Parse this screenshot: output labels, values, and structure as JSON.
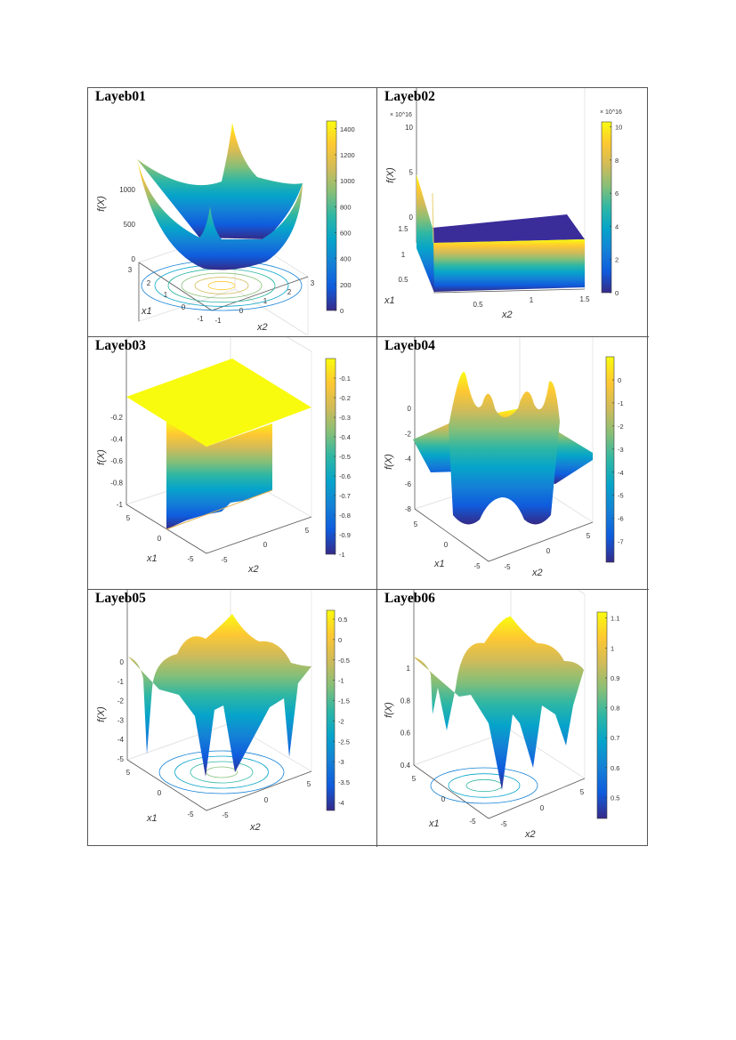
{
  "chart_data": [
    {
      "type": "surface3d",
      "title": "Layeb01",
      "zlabel": "f(X)",
      "x1label": "x1",
      "x2label": "x2",
      "z_ticks": [
        "0",
        "500",
        "1000"
      ],
      "z_range": [
        0,
        1000
      ],
      "x1_ticks": [
        "3",
        "2",
        "1",
        "0",
        "-1"
      ],
      "x2_ticks": [
        "-1",
        "0",
        "1",
        "2",
        "3"
      ],
      "colorbar_ticks": [
        0,
        200,
        400,
        600,
        800,
        1000,
        1200,
        1400
      ],
      "colorbar_range": [
        0,
        1460
      ],
      "colorbar_exponent": ""
    },
    {
      "type": "surface3d",
      "title": "Layeb02",
      "zlabel": "f(X)",
      "x1label": "x1",
      "x2label": "x2",
      "z_ticks": [
        "10",
        "5",
        "0"
      ],
      "z_range": [
        10,
        0
      ],
      "z_exponent": "× 10^16",
      "x1_ticks": [
        "1.5",
        "1",
        "0.5"
      ],
      "x2_ticks": [
        "0.5",
        "1",
        "1.5"
      ],
      "colorbar_ticks": [
        0,
        2,
        4,
        6,
        8,
        10
      ],
      "colorbar_range": [
        0,
        10.3
      ],
      "colorbar_exponent": "× 10^16"
    },
    {
      "type": "surface3d",
      "title": "Layeb03",
      "zlabel": "f(X)",
      "x1label": "x1",
      "x2label": "x2",
      "z_ticks": [
        "-0.2",
        "-0.4",
        "-0.6",
        "-0.8",
        "-1"
      ],
      "z_range": [
        -0.2,
        -1
      ],
      "x1_ticks": [
        "5",
        "0",
        "-5"
      ],
      "x2_ticks": [
        "-5",
        "0",
        "5"
      ],
      "colorbar_ticks": [
        -0.1,
        -0.2,
        -0.3,
        -0.4,
        -0.5,
        -0.6,
        -0.7,
        -0.8,
        -0.9,
        -1
      ],
      "colorbar_range": [
        -1,
        0
      ],
      "colorbar_exponent": ""
    },
    {
      "type": "surface3d",
      "title": "Layeb04",
      "zlabel": "f(X)",
      "x1label": "x1",
      "x2label": "x2",
      "z_ticks": [
        "0",
        "-2",
        "-4",
        "-6",
        "-8"
      ],
      "z_range": [
        0,
        -8
      ],
      "x1_ticks": [
        "5",
        "0",
        "-5"
      ],
      "x2_ticks": [
        "-5",
        "0",
        "5"
      ],
      "colorbar_ticks": [
        0,
        -1,
        -2,
        -3,
        -4,
        -5,
        -6,
        -7
      ],
      "colorbar_range": [
        -7.9,
        1.0
      ],
      "colorbar_exponent": ""
    },
    {
      "type": "surface3d",
      "title": "Layeb05",
      "zlabel": "f(X)",
      "x1label": "x1",
      "x2label": "x2",
      "z_ticks": [
        "0",
        "-1",
        "-2",
        "-3",
        "-4",
        "-5"
      ],
      "z_range": [
        0,
        -5
      ],
      "x1_ticks": [
        "5",
        "0",
        "-5"
      ],
      "x2_ticks": [
        "-5",
        "0",
        "5"
      ],
      "colorbar_ticks": [
        0.5,
        0,
        -0.5,
        -1,
        -1.5,
        -2,
        -2.5,
        -3,
        -3.5,
        -4
      ],
      "colorbar_range": [
        -4.2,
        0.72
      ],
      "colorbar_exponent": ""
    },
    {
      "type": "surface3d",
      "title": "Layeb06",
      "zlabel": "f(X)",
      "x1label": "x1",
      "x2label": "x2",
      "z_ticks": [
        "1",
        "0.8",
        "0.6",
        "0.4"
      ],
      "z_range": [
        1,
        0.4
      ],
      "x1_ticks": [
        "5",
        "0",
        "-5"
      ],
      "x2_ticks": [
        "-5",
        "0",
        "5"
      ],
      "colorbar_ticks": [
        1.1,
        1,
        0.9,
        0.8,
        0.7,
        0.6,
        0.5
      ],
      "colorbar_range": [
        0.43,
        1.12
      ],
      "colorbar_exponent": ""
    }
  ],
  "colormap": [
    "#352a87",
    "#0f5cdd",
    "#1481d6",
    "#06a4ca",
    "#2eb7a4",
    "#87bf77",
    "#d1bb59",
    "#fec832",
    "#f9fb0e"
  ]
}
